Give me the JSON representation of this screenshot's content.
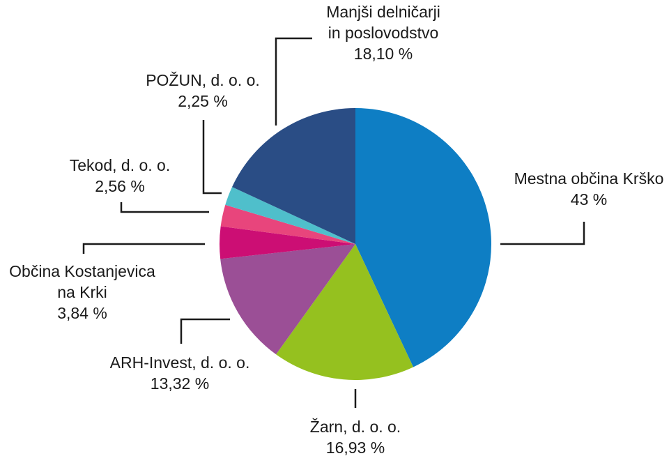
{
  "chart_data": {
    "type": "pie",
    "title": "",
    "slices": [
      {
        "name": "Mestna občina Krško",
        "lines": [
          "Mestna občina Krško"
        ],
        "value_label": "43 %",
        "value": 43,
        "color": "#0e7ec4"
      },
      {
        "name": "Žarn, d. o. o.",
        "lines": [
          "Žarn, d. o. o."
        ],
        "value_label": "16,93 %",
        "value": 16.93,
        "color": "#95c11f"
      },
      {
        "name": "ARH-Invest, d. o. o.",
        "lines": [
          "ARH-Invest, d. o. o."
        ],
        "value_label": "13,32 %",
        "value": 13.32,
        "color": "#9b4f96"
      },
      {
        "name": "Občina Kostanjevica na Krki",
        "lines": [
          "Občina Kostanjevica",
          "na Krki"
        ],
        "value_label": "3,84 %",
        "value": 3.84,
        "color": "#cc0e74"
      },
      {
        "name": "Tekod, d. o. o.",
        "lines": [
          "Tekod, d. o. o."
        ],
        "value_label": "2,56 %",
        "value": 2.56,
        "color": "#e8457c"
      },
      {
        "name": "POŽUN, d. o. o.",
        "lines": [
          "POŽUN, d. o. o."
        ],
        "value_label": "2,25 %",
        "value": 2.25,
        "color": "#4fbfcb"
      },
      {
        "name": "Manjši delničarji in poslovodstvo",
        "lines": [
          "Manjši delničarji",
          "in poslovodstvo"
        ],
        "value_label": "18,10 %",
        "value": 18.1,
        "color": "#2a4d85"
      }
    ]
  }
}
